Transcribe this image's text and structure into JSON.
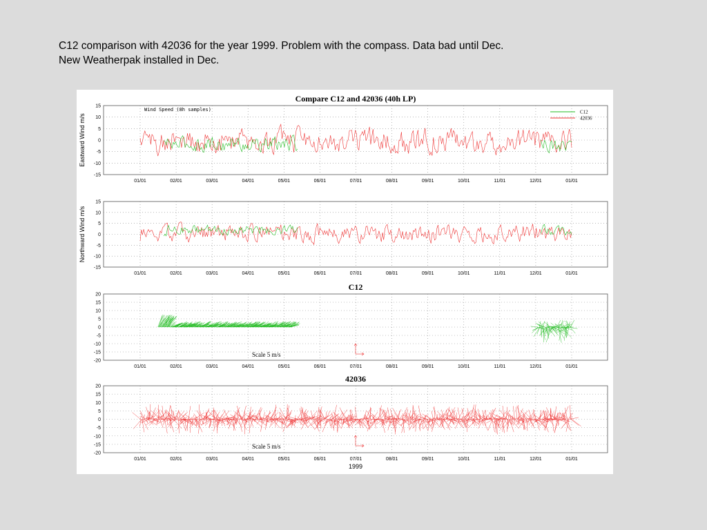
{
  "caption": {
    "line1": "C12 comparison with 42036 for the year 1999. Problem with the compass. Data bad until Dec.",
    "line2": "New Weatherpak installed in Dec."
  },
  "colors": {
    "c12": "#22bb22",
    "b42036": "#ee3333",
    "grid": "#888888"
  },
  "chart_data": [
    {
      "type": "line",
      "title": "Compare C12 and 42036 (40h LP)",
      "subtitle": "Wind Speed (8h samples)",
      "ylabel": "Eastward Wind m/s",
      "ylim": [
        -15,
        15
      ],
      "yticks": [
        "15",
        "10",
        "5",
        "0",
        "-5",
        "-10",
        "-15"
      ],
      "xticks": [
        "01/01",
        "02/01",
        "03/01",
        "04/01",
        "05/01",
        "06/01",
        "07/01",
        "08/01",
        "09/01",
        "10/01",
        "11/01",
        "12/01",
        "01/01"
      ],
      "legend": {
        "position": "top-right",
        "entries": [
          "C12",
          "42036"
        ]
      },
      "series": [
        {
          "name": "C12",
          "color": "#22bb22",
          "segments": [
            [
              20,
              133
            ],
            [
              339,
              365
            ]
          ],
          "amplitude": 3.6,
          "mean": -1.8
        },
        {
          "name": "42036",
          "color": "#ee3333",
          "segments": [
            [
              0,
              365
            ]
          ],
          "amplitude": 6.0,
          "mean": -0.5
        }
      ]
    },
    {
      "type": "line",
      "title": "",
      "ylabel": "Northward Wind m/s",
      "ylim": [
        -15,
        15
      ],
      "yticks": [
        "15",
        "10",
        "5",
        "0",
        "-5",
        "-10",
        "-15"
      ],
      "xticks": [
        "01/01",
        "02/01",
        "03/01",
        "04/01",
        "05/01",
        "06/01",
        "07/01",
        "08/01",
        "09/01",
        "10/01",
        "11/01",
        "12/01",
        "01/01"
      ],
      "series": [
        {
          "name": "C12",
          "color": "#22bb22",
          "segments": [
            [
              20,
              133
            ],
            [
              339,
              365
            ]
          ],
          "amplitude": 2.5,
          "mean": 2.0
        },
        {
          "name": "42036",
          "color": "#ee3333",
          "segments": [
            [
              0,
              365
            ]
          ],
          "amplitude": 4.5,
          "mean": 0.5
        }
      ]
    },
    {
      "type": "stickplot",
      "title": "C12",
      "ylim": [
        -20,
        20
      ],
      "yticks": [
        "20",
        "15",
        "10",
        "5",
        "0",
        "-5",
        "-10",
        "-15",
        "-20"
      ],
      "xticks": [
        "01/01",
        "02/01",
        "03/01",
        "04/01",
        "05/01",
        "06/01",
        "07/01",
        "08/01",
        "09/01",
        "10/01",
        "11/01",
        "12/01",
        "01/01"
      ],
      "scale_label": "Scale 5 m/s",
      "series": [
        {
          "name": "C12",
          "color": "#22bb22",
          "segments": [
            [
              15,
              128
            ],
            [
              336,
              365
            ]
          ]
        }
      ]
    },
    {
      "type": "stickplot",
      "title": "42036",
      "xlabel": "1999",
      "ylim": [
        -20,
        20
      ],
      "yticks": [
        "20",
        "15",
        "10",
        "5",
        "0",
        "-5",
        "-10",
        "-15",
        "-20"
      ],
      "xticks": [
        "01/01",
        "02/01",
        "03/01",
        "04/01",
        "05/01",
        "06/01",
        "07/01",
        "08/01",
        "09/01",
        "10/01",
        "11/01",
        "12/01",
        "01/01"
      ],
      "scale_label": "Scale 5 m/s",
      "series": [
        {
          "name": "42036",
          "color": "#ee3333",
          "segments": [
            [
              0,
              365
            ]
          ]
        }
      ]
    }
  ]
}
